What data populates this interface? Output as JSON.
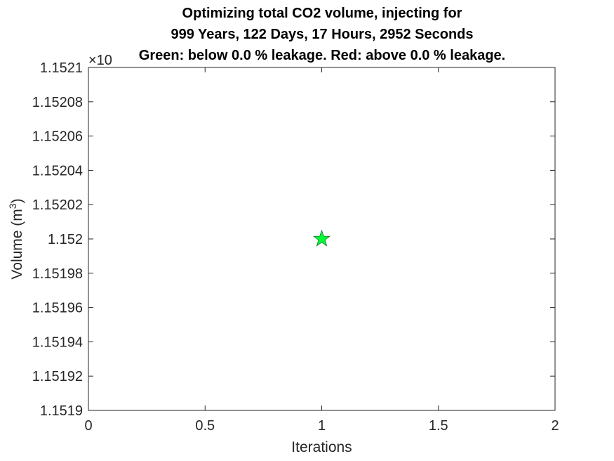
{
  "chart_data": {
    "type": "scatter",
    "title_lines": [
      "Optimizing total CO2 volume, injecting for",
      "999 Years, 122 Days, 17 Hours, 2952 Seconds",
      "Green: below 0.0 % leakage. Red: above 0.0 % leakage."
    ],
    "xlabel": "Iterations",
    "ylabel_text": "Volume (m",
    "ylabel_sup": "3",
    "ylabel_close": ")",
    "y_exponent_text": "×10",
    "xlim": [
      0,
      2
    ],
    "ylim": [
      1.1519,
      1.1521
    ],
    "x_ticks": [
      "0",
      "0.5",
      "1",
      "1.5",
      "2"
    ],
    "x_tick_values": [
      0,
      0.5,
      1,
      1.5,
      2
    ],
    "y_ticks": [
      "1.1519",
      "1.15192",
      "1.15194",
      "1.15196",
      "1.15198",
      "1.152",
      "1.15202",
      "1.15204",
      "1.15206",
      "1.15208",
      "1.1521"
    ],
    "y_tick_values": [
      1.1519,
      1.15192,
      1.15194,
      1.15196,
      1.15198,
      1.152,
      1.15202,
      1.15204,
      1.15206,
      1.15208,
      1.1521
    ],
    "points": [
      {
        "x": 1,
        "y": 1.152,
        "marker": "star",
        "color": "#00ff33"
      }
    ],
    "grid": false
  },
  "colors": {
    "axis": "#262626",
    "below_leakage": "#00ff33",
    "above_leakage": "#ff0000"
  }
}
